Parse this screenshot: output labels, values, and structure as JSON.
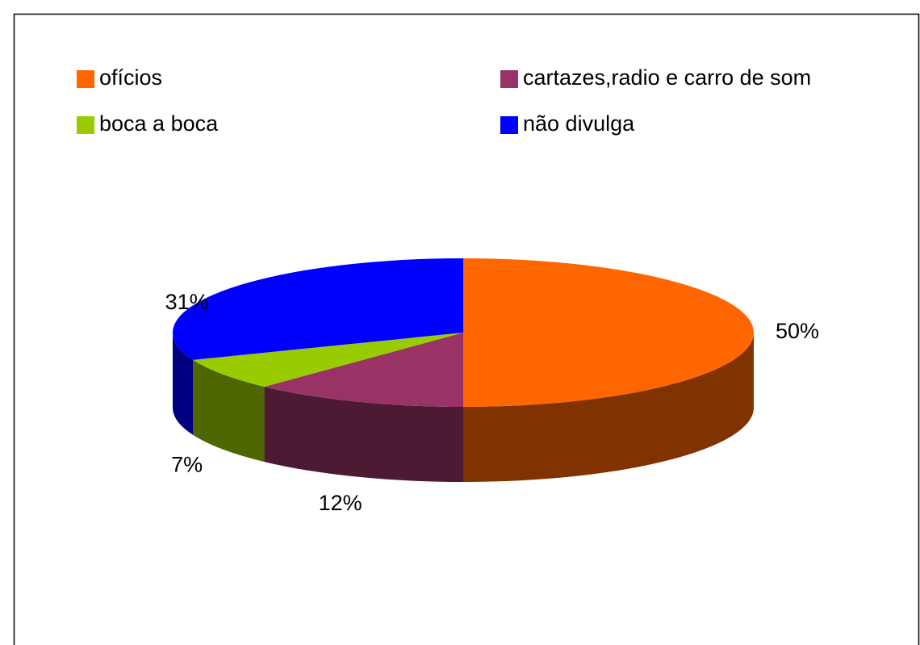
{
  "chart_data": {
    "type": "pie3d",
    "categories": [
      "ofícios",
      "cartazes,radio e carro de som",
      "boca a boca",
      "não divulga"
    ],
    "values": [
      50,
      12,
      7,
      31
    ],
    "value_labels": [
      "50%",
      "12%",
      "7%",
      "31%"
    ],
    "colors": [
      "#ff6600",
      "#993366",
      "#99cc00",
      "#0000ff"
    ],
    "side_colors": [
      "#803300",
      "#4d1a33",
      "#4d6600",
      "#000080"
    ]
  }
}
